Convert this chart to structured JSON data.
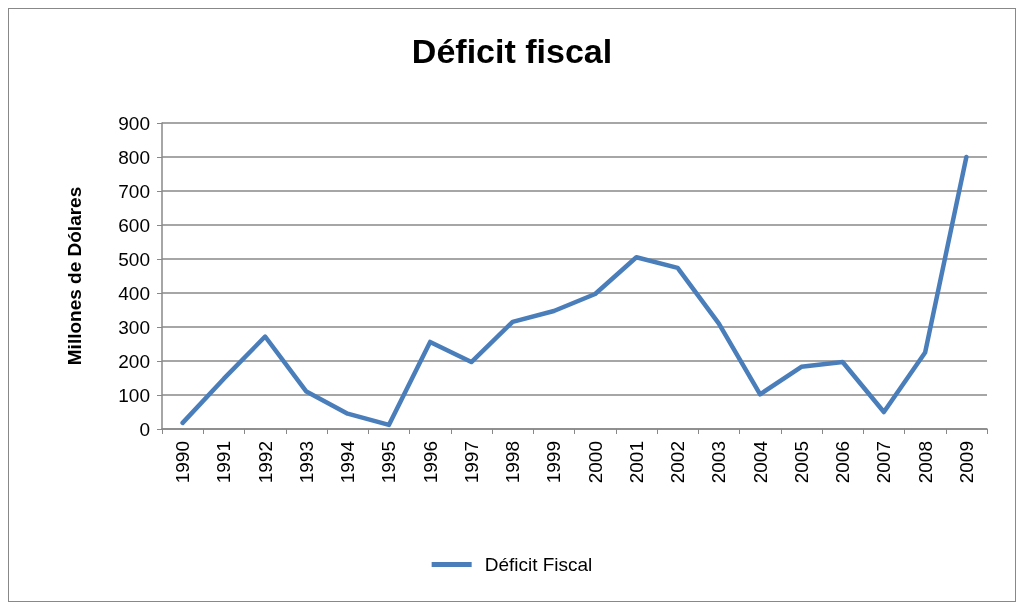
{
  "chart_data": {
    "type": "line",
    "title": "Déficit fiscal",
    "ylabel": "Millones de Dólares",
    "categories": [
      "1990",
      "1991",
      "1992",
      "1993",
      "1994",
      "1995",
      "1996",
      "1997",
      "1998",
      "1999",
      "2000",
      "2001",
      "2002",
      "2003",
      "2004",
      "2005",
      "2006",
      "2007",
      "2008",
      "2009"
    ],
    "series": [
      {
        "name": "Déficit Fiscal",
        "color": "#4a7ebb",
        "values": [
          18,
          148,
          272,
          110,
          45,
          12,
          256,
          197,
          315,
          347,
          397,
          505,
          474,
          310,
          102,
          183,
          197,
          50,
          225,
          800
        ]
      }
    ],
    "ylim": [
      0,
      900
    ],
    "yticks": [
      0,
      100,
      200,
      300,
      400,
      500,
      600,
      700,
      800,
      900
    ],
    "grid": "y",
    "legend": "bottom",
    "marker": "none"
  }
}
